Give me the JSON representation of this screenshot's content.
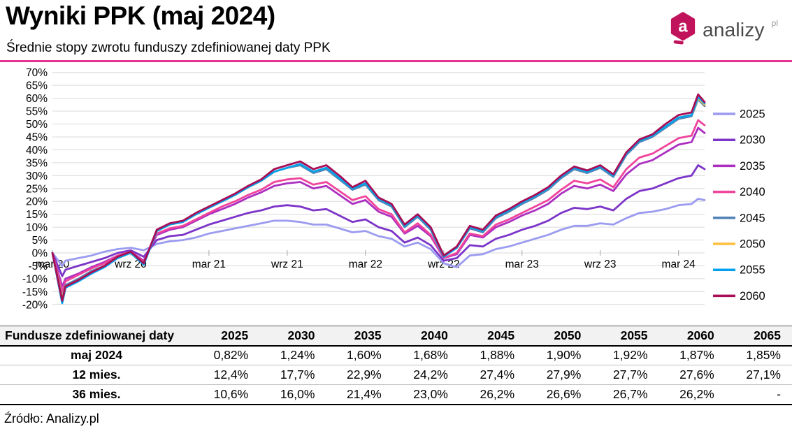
{
  "header": {
    "title": "Wyniki PPK (maj 2024)",
    "subtitle": "Średnie stopy zwrotu funduszy zdefiniowanej daty PPK",
    "logo": {
      "text": "analizy",
      "suffix": "pl"
    }
  },
  "colors": {
    "accent_rule": "#e6338f",
    "logo_brand": "#c1135c",
    "gridline": "#d9d9d9",
    "axis_tick": "#a6a6a6",
    "header_row_bg": "#f2f2f2"
  },
  "chart_data": {
    "type": "line",
    "title": "Średnie stopy zwrotu funduszy zdefiniowanej daty PPK",
    "xlabel": "",
    "ylabel": "",
    "grid": true,
    "legend_position": "right",
    "ylim": [
      -20,
      70
    ],
    "y_step": 5,
    "y_suffix": "%",
    "x_unit_note": "months since 2020-03; value = cumulative return %",
    "xlim": [
      0,
      50.5
    ],
    "x_ticks": [
      {
        "x": 0,
        "label": "mar 20"
      },
      {
        "x": 6,
        "label": "wrz 20"
      },
      {
        "x": 12,
        "label": "mar 21"
      },
      {
        "x": 18,
        "label": "wrz 21"
      },
      {
        "x": 24,
        "label": "mar 22"
      },
      {
        "x": 30,
        "label": "wrz 22"
      },
      {
        "x": 36,
        "label": "mar 23"
      },
      {
        "x": 42,
        "label": "wrz 23"
      },
      {
        "x": 48,
        "label": "mar 24"
      }
    ],
    "x": [
      0,
      0.75,
      1,
      2,
      3,
      4,
      5,
      6,
      7,
      8,
      9,
      10,
      11,
      12,
      13,
      14,
      15,
      16,
      17,
      18,
      19,
      20,
      21,
      22,
      23,
      24,
      25,
      26,
      27,
      28,
      29,
      30,
      31,
      32,
      33,
      34,
      35,
      36,
      37,
      38,
      39,
      40,
      41,
      42,
      43,
      44,
      45,
      46,
      47,
      48,
      49,
      49.5,
      50
    ],
    "series": [
      {
        "name": "2025",
        "color": "#9b9bf0",
        "values": [
          0,
          -5,
          -3,
          -2,
          -1,
          0.5,
          1.5,
          2,
          1,
          3.5,
          4.5,
          5,
          6,
          7.5,
          8.5,
          9.5,
          10.5,
          11.5,
          12.5,
          12.5,
          12,
          11,
          11,
          9.5,
          8,
          8.5,
          6.5,
          5.5,
          2.5,
          4,
          1.5,
          -4,
          -5.5,
          -1,
          -0.5,
          1.5,
          2.5,
          4,
          5.5,
          7,
          9,
          10.5,
          10.5,
          11.5,
          11,
          13.5,
          15.5,
          16,
          17,
          18.5,
          19,
          21,
          20.5
        ]
      },
      {
        "name": "2030",
        "color": "#7c35c8",
        "values": [
          0,
          -9,
          -6.5,
          -5,
          -3.5,
          -2,
          0,
          1,
          -1.5,
          5,
          6.5,
          7,
          9,
          11,
          12.5,
          14,
          15.5,
          16.5,
          18,
          18.5,
          18,
          16.5,
          17,
          14.5,
          12,
          13,
          10,
          8.5,
          4,
          6,
          3,
          -3,
          -2,
          3,
          2.5,
          5.5,
          7,
          9,
          10.5,
          12.5,
          15.5,
          17.5,
          17,
          18,
          16.5,
          21,
          24,
          25,
          27,
          29,
          30,
          34,
          32.5
        ]
      },
      {
        "name": "2035",
        "color": "#ac2ec0",
        "values": [
          0,
          -13,
          -10,
          -8,
          -5.5,
          -3.5,
          -1,
          0.5,
          -3,
          7,
          9,
          10,
          12.5,
          15,
          17,
          19,
          21.5,
          23.5,
          26,
          27,
          27.5,
          25,
          26,
          22.5,
          19,
          20.5,
          16,
          14,
          7.5,
          10.5,
          6.5,
          -2,
          -0.5,
          7,
          6,
          10,
          12,
          14.5,
          16.5,
          19,
          23,
          26,
          25,
          26.5,
          24,
          30.5,
          34.5,
          36,
          39,
          42,
          43,
          48.5,
          46.5
        ]
      },
      {
        "name": "2040",
        "color": "#f0439c",
        "values": [
          0,
          -15,
          -11,
          -8.5,
          -6,
          -4,
          -1,
          0.5,
          -3.5,
          7.5,
          9.5,
          10.5,
          13,
          15.5,
          18,
          20,
          22.5,
          24.5,
          27.5,
          28.5,
          29,
          26.5,
          27.5,
          24,
          20.5,
          22,
          17,
          15,
          8,
          11.5,
          7,
          -2,
          0,
          7.5,
          6.5,
          11,
          13,
          15.5,
          18,
          20.5,
          24.5,
          28,
          27,
          28.5,
          25.5,
          32.5,
          37,
          38.5,
          41.5,
          44.5,
          45.5,
          51.5,
          49.5
        ]
      },
      {
        "name": "2045",
        "color": "#4e81b4",
        "values": [
          0,
          -17.5,
          -12.5,
          -10,
          -7,
          -5,
          -1.5,
          0.5,
          -4,
          8.5,
          11,
          12,
          15,
          17.5,
          20,
          22.5,
          25.5,
          28,
          31.5,
          33,
          34,
          31,
          32.5,
          28.5,
          24.5,
          26.5,
          20.5,
          18,
          10,
          14,
          9,
          -1.5,
          2,
          9.5,
          8,
          13.5,
          16,
          19,
          21.5,
          24.5,
          29,
          32.5,
          31,
          33,
          29.5,
          38,
          43,
          45,
          48.5,
          52,
          53,
          59.5,
          57
        ]
      },
      {
        "name": "2050",
        "color": "#ffbf3f",
        "values": [
          0,
          -18,
          -13,
          -10.5,
          -7.5,
          -5,
          -1.5,
          0.5,
          -4,
          8.5,
          11,
          12,
          15,
          17.5,
          20,
          22.5,
          25.5,
          28,
          31.5,
          33,
          34.5,
          31.5,
          33,
          29,
          25,
          27,
          21,
          18.5,
          10.5,
          14.5,
          9.5,
          -1,
          2,
          10,
          8.5,
          14,
          16.5,
          19.5,
          22,
          25,
          29.5,
          33,
          31.5,
          33.5,
          30,
          38.5,
          43.5,
          45.5,
          49,
          52.5,
          53.5,
          60,
          57.5
        ]
      },
      {
        "name": "2055",
        "color": "#00a2ef",
        "values": [
          0,
          -19.5,
          -13.5,
          -11,
          -8,
          -5.5,
          -2,
          0,
          -4.5,
          8.5,
          11,
          12,
          15,
          17.5,
          20,
          22.5,
          25.5,
          28,
          31.5,
          33,
          34.5,
          31.5,
          33,
          29,
          25,
          27,
          21,
          18.5,
          10.5,
          14.5,
          9.5,
          -1.5,
          2,
          10,
          8.5,
          14,
          16.5,
          19.5,
          22,
          25,
          29.5,
          33,
          31.5,
          33.5,
          30,
          38.5,
          43.5,
          45.5,
          49,
          52.5,
          53.5,
          60.5,
          58
        ]
      },
      {
        "name": "2060",
        "color": "#a80d55",
        "values": [
          0,
          -18.5,
          -13,
          -10.5,
          -7.5,
          -5,
          -1.5,
          0.5,
          -4,
          9,
          11.5,
          12.5,
          15.5,
          18,
          20.5,
          23,
          26,
          28.5,
          32.5,
          34,
          35.5,
          32.5,
          34,
          30,
          25.5,
          28,
          21.5,
          19,
          11,
          15,
          10,
          -1,
          2.5,
          10.5,
          9,
          14.5,
          17,
          20,
          22.5,
          25.5,
          30,
          33.5,
          32,
          34,
          30.5,
          39,
          44,
          46,
          50,
          53.5,
          54.5,
          61.5,
          58.5
        ]
      }
    ]
  },
  "table": {
    "header_col": "Fundusze zdefiniowanej daty",
    "columns": [
      "2025",
      "2030",
      "2035",
      "2040",
      "2045",
      "2050",
      "2055",
      "2060",
      "2065"
    ],
    "rows": [
      {
        "label": "maj 2024",
        "values": [
          "0,82%",
          "1,24%",
          "1,60%",
          "1,68%",
          "1,88%",
          "1,90%",
          "1,92%",
          "1,87%",
          "1,85%"
        ]
      },
      {
        "label": "12 mies.",
        "values": [
          "12,4%",
          "17,7%",
          "22,9%",
          "24,2%",
          "27,4%",
          "27,9%",
          "27,7%",
          "27,6%",
          "27,1%"
        ]
      },
      {
        "label": "36 mies.",
        "values": [
          "10,6%",
          "16,0%",
          "21,4%",
          "23,0%",
          "26,2%",
          "26,6%",
          "26,7%",
          "26,2%",
          "-"
        ]
      }
    ]
  },
  "footer": {
    "source": "Źródło: Analizy.pl"
  }
}
